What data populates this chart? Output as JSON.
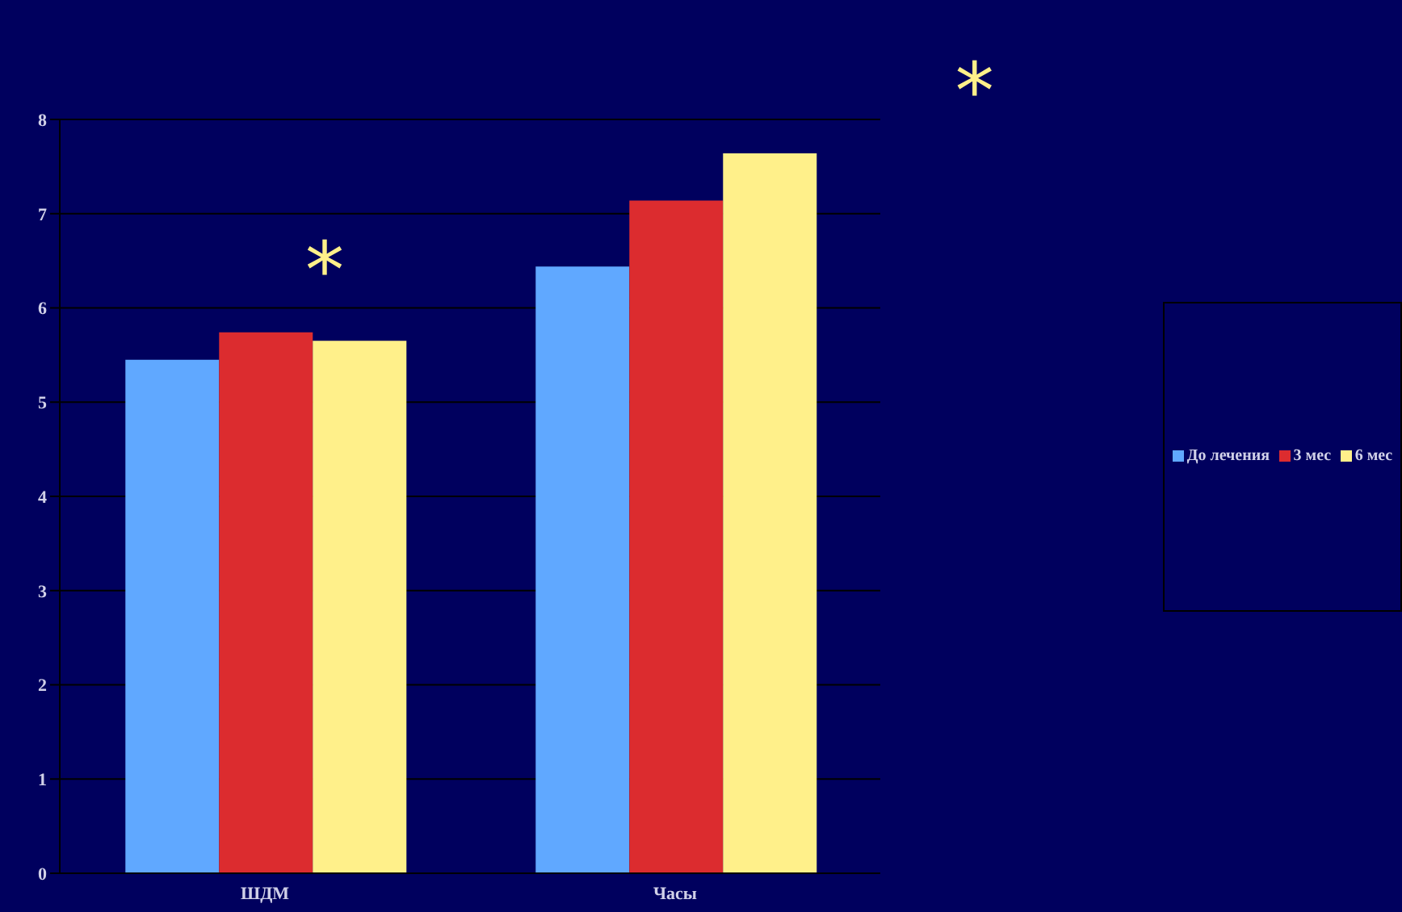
{
  "chart_data": {
    "type": "bar",
    "categories": [
      "ШДМ",
      "Часы"
    ],
    "series": [
      {
        "name": "До лечения",
        "color": "#60a8ff",
        "values": [
          5.45,
          6.44
        ]
      },
      {
        "name": "3 мес",
        "color": "#dc2c2f",
        "values": [
          5.74,
          7.14
        ]
      },
      {
        "name": "6 мес",
        "color": "#fff08a",
        "values": [
          5.65,
          7.64
        ]
      }
    ],
    "ylim": [
      0,
      8
    ],
    "yticks": [
      0,
      1,
      2,
      3,
      4,
      5,
      6,
      7,
      8
    ],
    "grid": "y",
    "legend": "right",
    "annotations": [
      "*",
      "*"
    ]
  }
}
